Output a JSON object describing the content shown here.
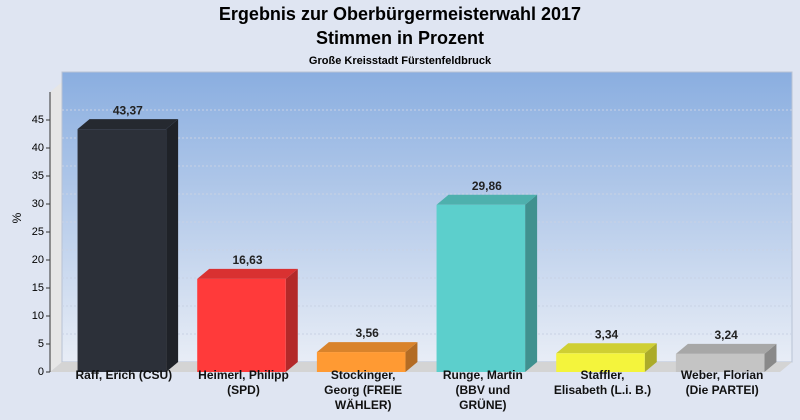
{
  "chart_data": {
    "type": "bar",
    "title": "Ergebnis zur Oberbürgermeisterwahl 2017",
    "subtitle": "Stimmen in Prozent",
    "caption": "Große Kreisstadt Fürstenfeldbruck",
    "y_label": "%",
    "categories": [
      "Raff, Erich (CSU)",
      "Heimerl, Philipp (SPD)",
      "Stockinger, Georg (FREIE WÄHLER)",
      "Runge, Martin (BBV und GRÜNE)",
      "Staffler, Elisabeth (L.i. B.)",
      "Weber, Florian (Die PARTEI)"
    ],
    "values": [
      43.37,
      16.63,
      3.56,
      29.86,
      3.34,
      3.24
    ],
    "value_labels": [
      "43,37",
      "16,63",
      "3,56",
      "29,86",
      "3,34",
      "3,24"
    ],
    "colors": [
      "#2c3039",
      "#ff3a3a",
      "#ff9a33",
      "#5ccfcc",
      "#f4f43c",
      "#c4c4c4"
    ],
    "ylim": [
      0,
      50
    ],
    "yticks": [
      0,
      5,
      10,
      15,
      20,
      25,
      30,
      35,
      40,
      45
    ],
    "grid": true
  }
}
